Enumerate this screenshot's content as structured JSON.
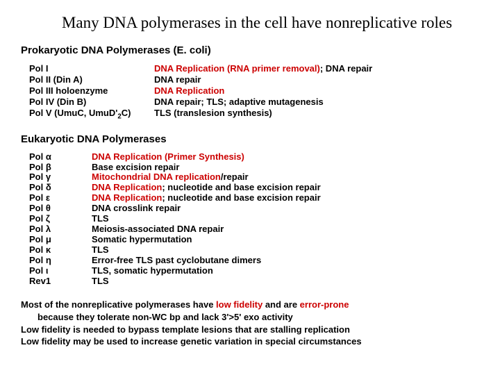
{
  "title": "Many DNA polymerases in the cell have nonreplicative roles",
  "prokaryotic": {
    "heading": "Prokaryotic DNA Polymerases (E. coli)",
    "rows": [
      {
        "name": "Pol I",
        "role_pre": "DNA Replication (RNA primer removal)",
        "role_post": "; DNA repair"
      },
      {
        "name": "Pol II (Din A)",
        "role_pre": "",
        "role_post": "DNA repair"
      },
      {
        "name": "Pol III holoenzyme",
        "role_pre": "DNA Replication",
        "role_post": ""
      },
      {
        "name": "Pol IV (Din B)",
        "role_pre": "",
        "role_post": "DNA repair; TLS; adaptive mutagenesis"
      },
      {
        "name": "Pol V (UmuC, UmuD'",
        "name_sub": "2",
        "name_after": "C)",
        "role_pre": "",
        "role_post": "TLS (translesion synthesis)"
      }
    ]
  },
  "eukaryotic": {
    "heading": "Eukaryotic DNA Polymerases",
    "rows": [
      {
        "name": "Pol α",
        "role_pre": "DNA Replication (Primer Synthesis)",
        "role_post": ""
      },
      {
        "name": "Pol β",
        "role_pre": "",
        "role_post": "Base excision repair"
      },
      {
        "name": "Pol γ",
        "role_pre": "Mitochondrial DNA replication",
        "role_post": "/repair"
      },
      {
        "name": "Pol δ",
        "role_pre": "DNA Replication",
        "role_post": "; nucleotide and base excision repair"
      },
      {
        "name": "Pol ε",
        "role_pre": "DNA Replication",
        "role_post": "; nucleotide and base excision repair"
      },
      {
        "name": "Pol θ",
        "role_pre": "",
        "role_post": "DNA crosslink repair"
      },
      {
        "name": "Pol ζ",
        "role_pre": "",
        "role_post": "TLS"
      },
      {
        "name": "Pol λ",
        "role_pre": "",
        "role_post": "Meiosis-associated DNA repair"
      },
      {
        "name": "Pol μ",
        "role_pre": "",
        "role_post": "Somatic hypermutation"
      },
      {
        "name": "Pol κ",
        "role_pre": "",
        "role_post": "TLS"
      },
      {
        "name": "Pol η",
        "role_pre": "",
        "role_post": "Error-free TLS past cyclobutane dimers"
      },
      {
        "name": "Pol ι",
        "role_pre": "",
        "role_post": "TLS, somatic hypermutation"
      },
      {
        "name": "Rev1",
        "role_pre": "",
        "role_post": "TLS"
      }
    ]
  },
  "footer": {
    "l1a": "Most of the nonreplicative polymerases have ",
    "l1b": "low fidelity",
    "l1c": " and are ",
    "l1d": "error-prone",
    "l2": "because they tolerate non-WC bp and lack 3'>5' exo activity",
    "l3": "Low fidelity is needed to bypass template lesions that are stalling replication",
    "l4": "Low fidelity may be used to increase genetic variation in special circumstances"
  },
  "colors": {
    "red": "#cc0000",
    "text": "#000000",
    "bg": "#ffffff"
  }
}
